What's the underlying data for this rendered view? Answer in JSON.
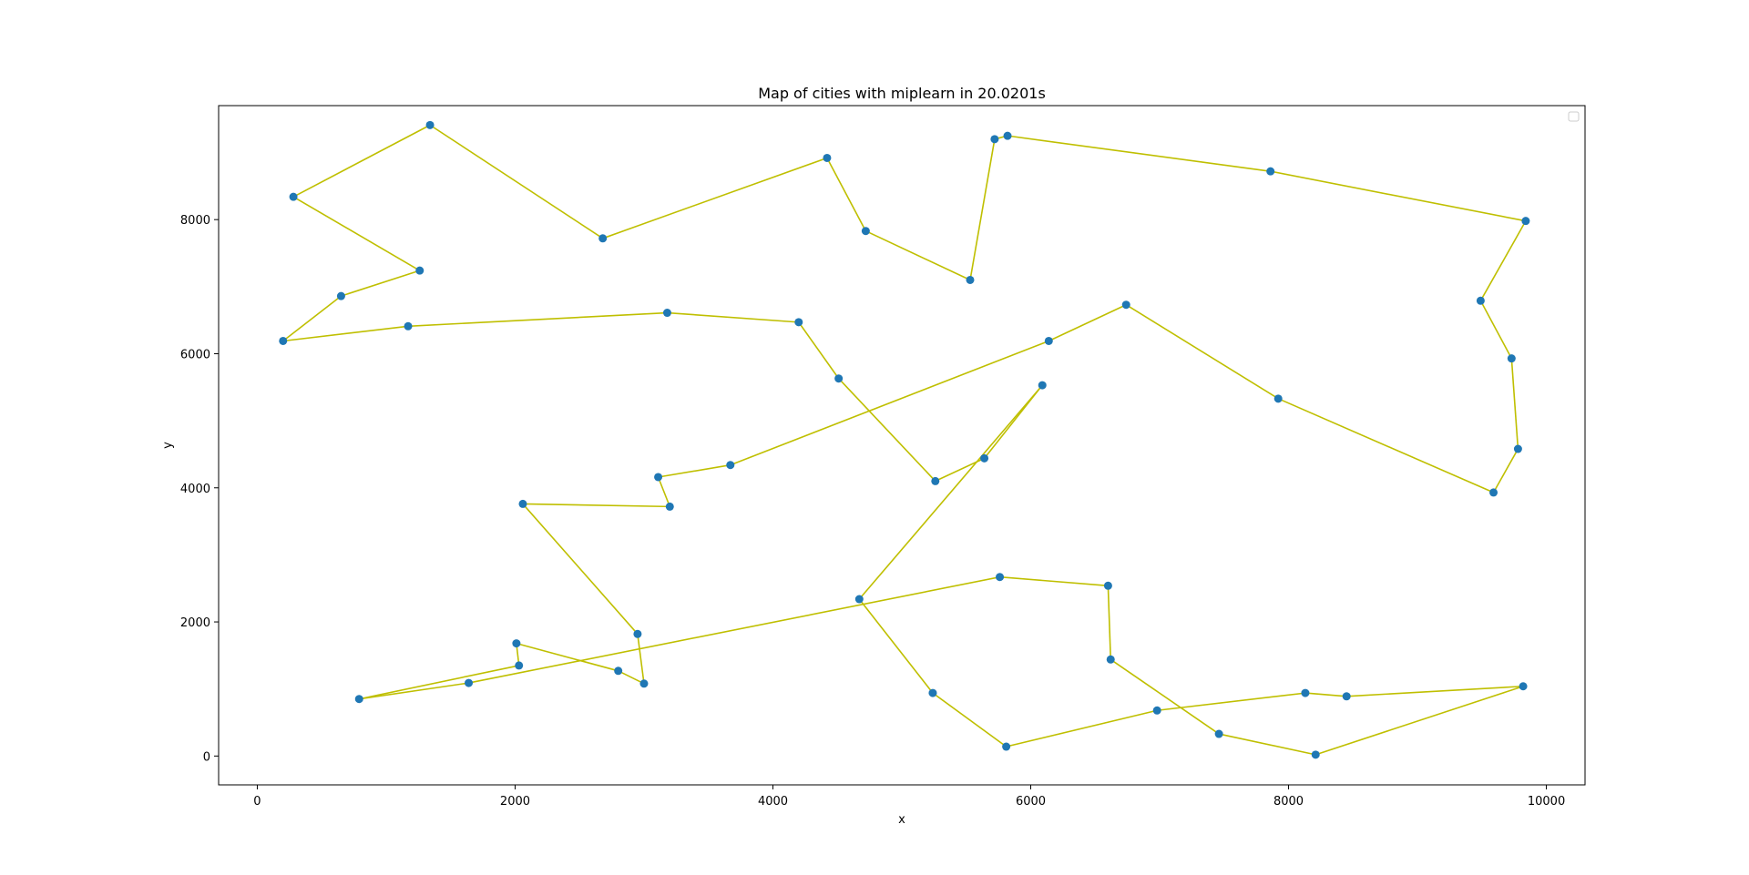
{
  "chart_data": {
    "type": "scatter",
    "title": "Map of cities with miplearn in 20.0201s",
    "xlabel": "x",
    "ylabel": "y",
    "xlim": [
      -300,
      10300
    ],
    "ylim": [
      -430,
      9700
    ],
    "xticks": [
      0,
      2000,
      4000,
      6000,
      8000,
      10000
    ],
    "yticks": [
      0,
      2000,
      4000,
      6000,
      8000
    ],
    "xtick_labels": [
      "0",
      "2000",
      "4000",
      "6000",
      "8000",
      "10000"
    ],
    "ytick_labels": [
      "0",
      "2000",
      "4000",
      "6000",
      "8000"
    ],
    "grid": false,
    "legend": {
      "placement": "top-right",
      "entries": []
    },
    "colors": {
      "points": "#1f77b4",
      "route": "#bfbf00"
    },
    "points": {
      "x": [
        2010,
        2030,
        790,
        1640,
        2800,
        3000,
        2950,
        2060,
        3200,
        3110,
        3670,
        6140,
        6740,
        7920,
        9590,
        9780,
        9730,
        9490,
        9840,
        7860,
        5820,
        5720,
        5530,
        4720,
        4420,
        2680,
        1340,
        280,
        1260,
        650,
        200,
        1170,
        3180,
        4200,
        4510,
        5260,
        5640,
        6090,
        4670,
        5240,
        5810,
        6980,
        8130,
        8450,
        9820,
        8210,
        7460,
        6620,
        6600,
        5760
      ],
      "y": [
        1680,
        1350,
        850,
        1090,
        1270,
        1080,
        1820,
        3760,
        3720,
        4160,
        4340,
        6190,
        6730,
        5330,
        3930,
        4580,
        5930,
        6790,
        7980,
        8720,
        9250,
        9200,
        7100,
        7830,
        8920,
        7720,
        9410,
        8340,
        7240,
        6860,
        6190,
        6410,
        6610,
        6470,
        5630,
        4100,
        4440,
        5530,
        2340,
        940,
        140,
        680,
        940,
        890,
        1040,
        20,
        330,
        1440,
        2540,
        2670
      ]
    },
    "route": [
      0,
      4,
      5,
      6,
      7,
      8,
      9,
      10,
      11,
      12,
      13,
      14,
      15,
      16,
      17,
      18,
      19,
      20,
      21,
      22,
      23,
      24,
      25,
      26,
      27,
      28,
      29,
      30,
      31,
      32,
      33,
      34,
      35,
      36,
      37,
      38,
      39,
      40,
      41,
      42,
      43,
      44,
      45,
      46,
      47,
      48,
      49,
      3,
      2,
      1,
      0
    ]
  }
}
